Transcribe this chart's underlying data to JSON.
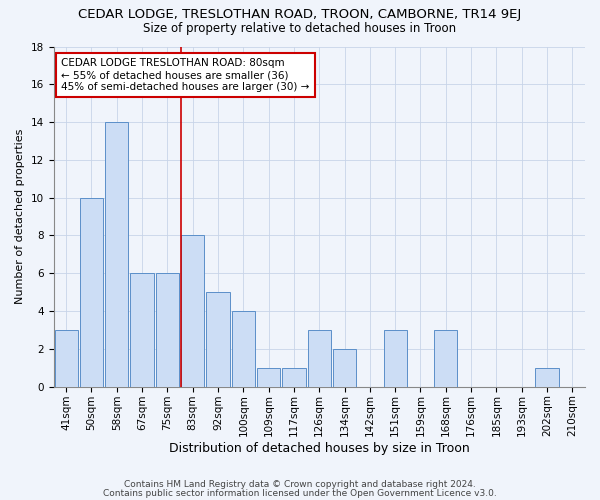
{
  "title": "CEDAR LODGE, TRESLOTHAN ROAD, TROON, CAMBORNE, TR14 9EJ",
  "subtitle": "Size of property relative to detached houses in Troon",
  "xlabel": "Distribution of detached houses by size in Troon",
  "ylabel": "Number of detached properties",
  "categories": [
    "41sqm",
    "50sqm",
    "58sqm",
    "67sqm",
    "75sqm",
    "83sqm",
    "92sqm",
    "100sqm",
    "109sqm",
    "117sqm",
    "126sqm",
    "134sqm",
    "142sqm",
    "151sqm",
    "159sqm",
    "168sqm",
    "176sqm",
    "185sqm",
    "193sqm",
    "202sqm",
    "210sqm"
  ],
  "values": [
    3,
    10,
    14,
    6,
    6,
    8,
    5,
    4,
    1,
    1,
    3,
    2,
    0,
    3,
    0,
    3,
    0,
    0,
    0,
    1,
    0
  ],
  "bar_color": "#ccddf5",
  "bar_edge_color": "#5b8fc9",
  "highlight_index": 5,
  "highlight_line_color": "#cc0000",
  "annotation_text": "CEDAR LODGE TRESLOTHAN ROAD: 80sqm\n← 55% of detached houses are smaller (36)\n45% of semi-detached houses are larger (30) →",
  "annotation_box_color": "#ffffff",
  "annotation_box_edge": "#cc0000",
  "ylim": [
    0,
    18
  ],
  "yticks": [
    0,
    2,
    4,
    6,
    8,
    10,
    12,
    14,
    16,
    18
  ],
  "footnote1": "Contains HM Land Registry data © Crown copyright and database right 2024.",
  "footnote2": "Contains public sector information licensed under the Open Government Licence v3.0.",
  "title_fontsize": 9.5,
  "subtitle_fontsize": 8.5,
  "xlabel_fontsize": 9,
  "ylabel_fontsize": 8,
  "tick_fontsize": 7.5,
  "annotation_fontsize": 7.5,
  "footnote_fontsize": 6.5,
  "bg_color": "#f0f4fb",
  "grid_color": "#c8d4e8"
}
